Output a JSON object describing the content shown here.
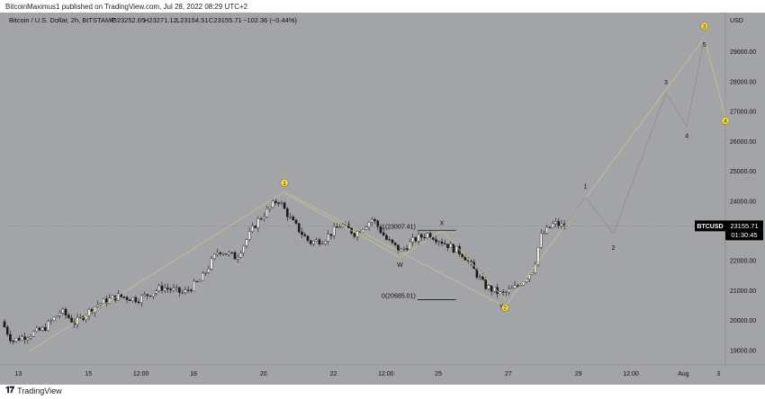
{
  "header": {
    "published": "BitcoinMaximus1 published on TradingView.com, Jul 28, 2022 08:29 UTC+2"
  },
  "footer": {
    "brand": "TradingView",
    "icon": "tradingview-logo-icon"
  },
  "colors": {
    "background": "#a3a4a8",
    "axis_bg": "#a3a4a8",
    "candle_up": "#ffffff",
    "candle_down": "#1a1a1a",
    "wave_line": "#c9c28f",
    "projection_line": "#8e8e8e",
    "label_circle": "#f2d84a",
    "price_tag": "#000000"
  },
  "chart_data": {
    "type": "candlestick",
    "symbol_line": "Bitcoin / U.S. Dollar, 2h, BITSTAMP",
    "ohlc": {
      "O": "O23252.65",
      "H": "H23271.12",
      "L": "L23154.51",
      "C": "C23155.71",
      "change": "−102.36 (−0.44%)"
    },
    "currency": "USD",
    "last_price": "23155.71",
    "last_price_value": 23155.71,
    "symbol": "BTCUSD",
    "countdown": "01:30:45",
    "y_range": [
      18500,
      30300
    ],
    "y_ticks": [
      {
        "value": 19000,
        "label": "19000.00"
      },
      {
        "value": 20000,
        "label": "20000.00"
      },
      {
        "value": 21000,
        "label": "21000.00"
      },
      {
        "value": 22000,
        "label": "22000.00"
      },
      {
        "value": 23000,
        "label": "23000.00"
      },
      {
        "value": 24000,
        "label": "24000.00"
      },
      {
        "value": 25000,
        "label": "25000.00"
      },
      {
        "value": 26000,
        "label": "26000.00"
      },
      {
        "value": 27000,
        "label": "27000.00"
      },
      {
        "value": 28000,
        "label": "28000.00"
      },
      {
        "value": 29000,
        "label": "29000.00"
      }
    ],
    "x_range": [
      12.6,
      33.2
    ],
    "x_ticks": [
      {
        "t": 13,
        "label": "13"
      },
      {
        "t": 15,
        "label": "15"
      },
      {
        "t": 16.5,
        "label": "12:00"
      },
      {
        "t": 18,
        "label": "18"
      },
      {
        "t": 20,
        "label": "20"
      },
      {
        "t": 22,
        "label": "22"
      },
      {
        "t": 23.5,
        "label": "12:00"
      },
      {
        "t": 25,
        "label": "25"
      },
      {
        "t": 27,
        "label": "27"
      },
      {
        "t": 29,
        "label": "29"
      },
      {
        "t": 30.5,
        "label": "12:00"
      },
      {
        "t": 32,
        "label": "Aug"
      },
      {
        "t": 33,
        "label": "3"
      }
    ],
    "anchors": [
      [
        12.6,
        19950
      ],
      [
        12.9,
        19300
      ],
      [
        13.8,
        19700
      ],
      [
        14.3,
        20300
      ],
      [
        14.7,
        19900
      ],
      [
        15.3,
        20500
      ],
      [
        15.9,
        20800
      ],
      [
        16.5,
        20700
      ],
      [
        17.2,
        21100
      ],
      [
        17.8,
        20900
      ],
      [
        18.3,
        21350
      ],
      [
        18.8,
        22350
      ],
      [
        19.3,
        22100
      ],
      [
        19.9,
        23300
      ],
      [
        20.5,
        24050
      ],
      [
        20.9,
        23300
      ],
      [
        21.4,
        22600
      ],
      [
        21.8,
        22700
      ],
      [
        22.3,
        23200
      ],
      [
        22.7,
        22900
      ],
      [
        23.2,
        23400
      ],
      [
        23.6,
        22700
      ],
      [
        24.0,
        22300
      ],
      [
        24.4,
        22700
      ],
      [
        24.8,
        22900
      ],
      [
        25.3,
        22550
      ],
      [
        25.8,
        22200
      ],
      [
        26.4,
        21150
      ],
      [
        26.9,
        20850
      ],
      [
        27.3,
        21100
      ],
      [
        27.8,
        21700
      ],
      [
        28.0,
        22800
      ],
      [
        28.4,
        23250
      ],
      [
        28.6,
        23160
      ]
    ],
    "wave_main": [
      [
        13.3,
        18950
      ],
      [
        20.6,
        24300
      ],
      [
        26.9,
        20450
      ],
      [
        32.6,
        29450
      ],
      [
        33.2,
        26800
      ]
    ],
    "wave_sub": [
      [
        20.6,
        24250
      ],
      [
        23.9,
        22100
      ],
      [
        25.1,
        23000
      ],
      [
        26.9,
        20700
      ]
    ],
    "projection": [
      [
        28.6,
        23160
      ],
      [
        29.2,
        24100
      ],
      [
        30.0,
        22900
      ],
      [
        31.5,
        27600
      ],
      [
        32.1,
        26500
      ],
      [
        32.6,
        29450
      ]
    ],
    "wave_labels": [
      {
        "text": "1",
        "t": 20.6,
        "v": 24600,
        "circled": true
      },
      {
        "text": "2",
        "t": 26.9,
        "v": 20420,
        "circled": true
      },
      {
        "text": "3",
        "t": 32.6,
        "v": 29850,
        "circled": true
      },
      {
        "text": "4",
        "t": 33.2,
        "v": 26680,
        "circled": true
      },
      {
        "text": "W",
        "t": 23.9,
        "v": 21850,
        "circled": false
      },
      {
        "text": "X",
        "t": 25.1,
        "v": 23250,
        "circled": false
      },
      {
        "text": "Y",
        "t": 26.8,
        "v": 20450,
        "circled": false
      },
      {
        "text": "1",
        "t": 29.2,
        "v": 24480,
        "circled": false
      },
      {
        "text": "2",
        "t": 30.0,
        "v": 22420,
        "circled": false
      },
      {
        "text": "3",
        "t": 31.5,
        "v": 27970,
        "circled": false
      },
      {
        "text": "4",
        "t": 32.1,
        "v": 26170,
        "circled": false
      },
      {
        "text": "5",
        "t": 32.6,
        "v": 29230,
        "circled": false
      }
    ],
    "fib_levels": [
      {
        "label": "1(23007.41)",
        "value": 23007.41,
        "t_start": 24.4,
        "t_end": 25.5
      },
      {
        "label": "0(20685.01)",
        "value": 20685.01,
        "t_start": 24.4,
        "t_end": 25.5
      }
    ]
  }
}
